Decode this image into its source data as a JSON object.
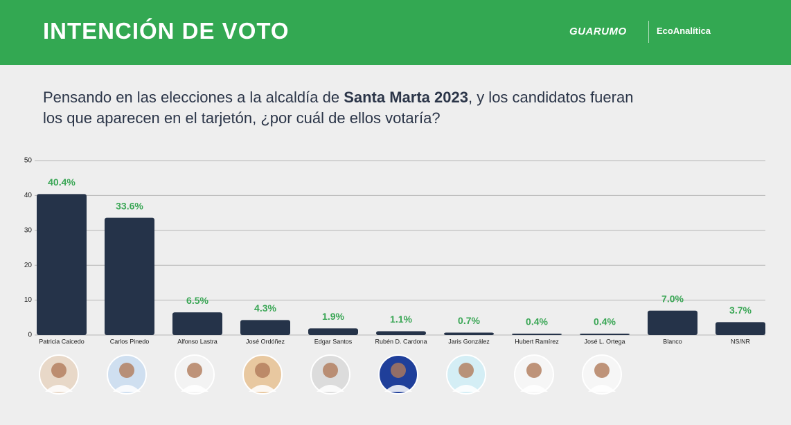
{
  "chart_data": {
    "type": "bar",
    "title": "INTENCIÓN DE VOTO",
    "brands": [
      "GUARUMO",
      "EcoAnalítica"
    ],
    "subtitle": [
      "Pensando en las elecciones a la alcaldía de ",
      "Santa Marta 2023",
      ", y los candidatos fueran los que aparecen en el tarjetón, ¿por cuál de ellos votaría?"
    ],
    "categories": [
      "Patricia Caicedo",
      "Carlos Pinedo",
      "Alfonso Lastra",
      "José Ordóñez",
      "Edgar Santos",
      "Rubén D. Cardona",
      "Jaris González",
      "Hubert Ramírez",
      "José L. Ortega",
      "Blanco",
      "NS/NR"
    ],
    "values": [
      40.4,
      33.6,
      6.5,
      4.3,
      1.9,
      1.1,
      0.7,
      0.4,
      0.4,
      7.0,
      3.7
    ],
    "value_labels": [
      "40.4%",
      "33.6%",
      "6.5%",
      "4.3%",
      "1.9%",
      "1.1%",
      "0.7%",
      "0.4%",
      "0.4%",
      "7.0%",
      "3.7%"
    ],
    "color": "#253349",
    "label_color": "#3aa655",
    "ylim": [
      0,
      50
    ],
    "yticks": [
      0,
      10,
      20,
      30,
      40,
      50
    ],
    "grid": true
  }
}
